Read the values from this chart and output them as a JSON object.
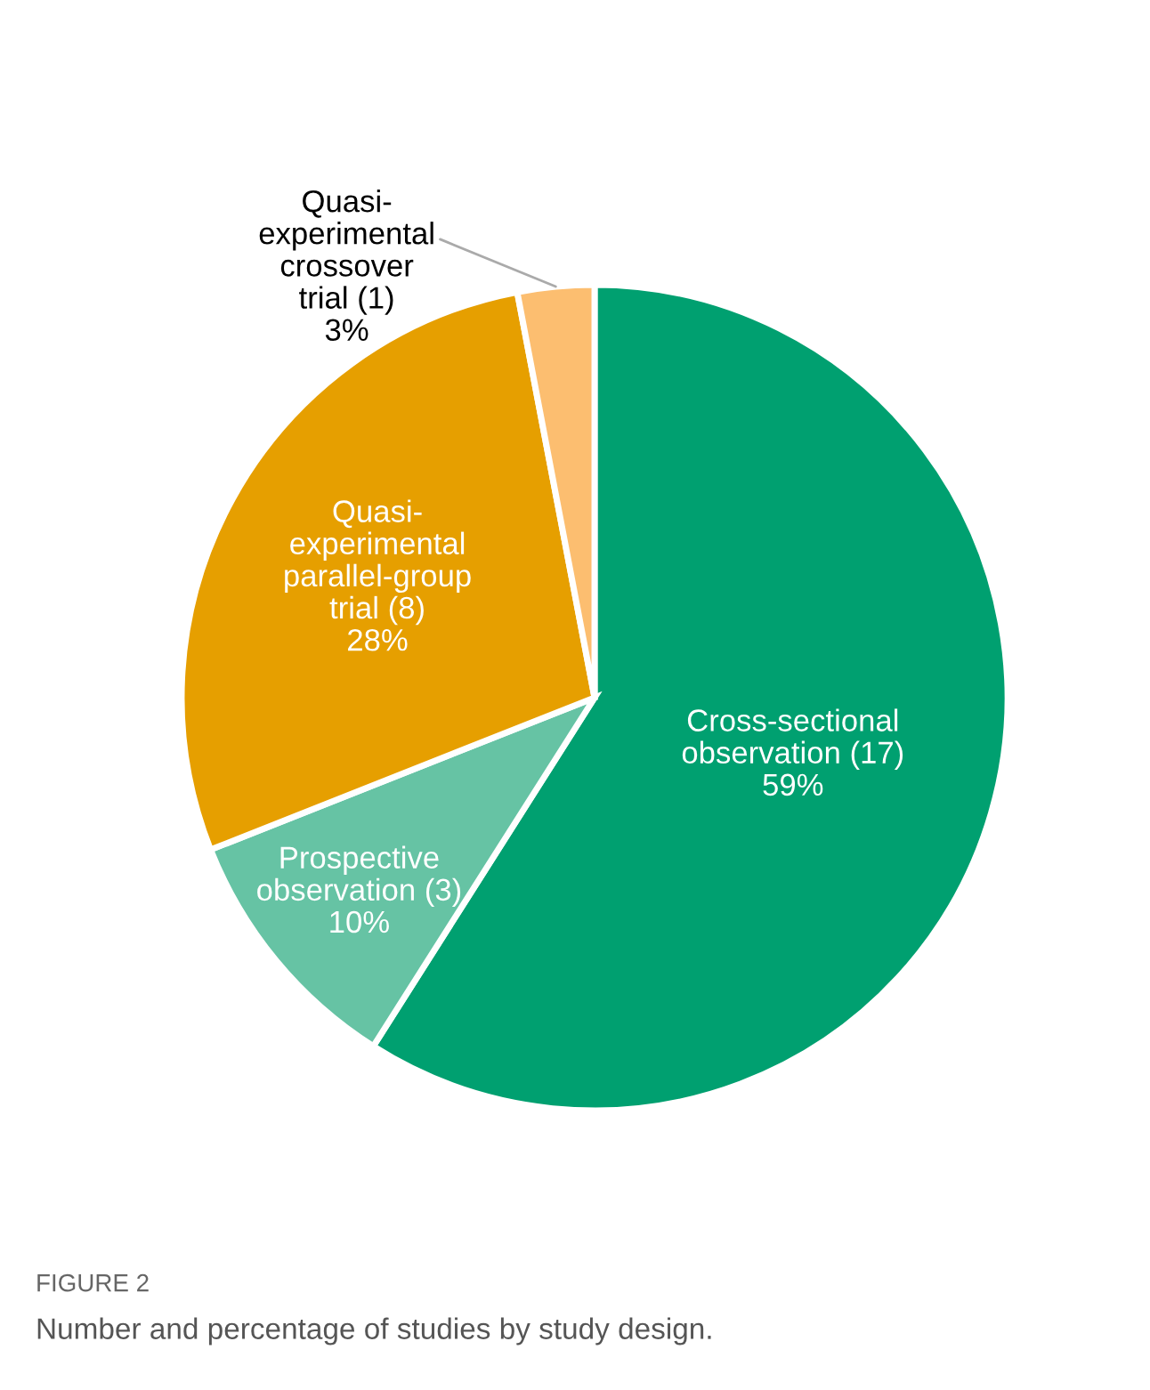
{
  "chart_data": {
    "type": "pie",
    "categories": [
      "Cross-sectional\nobservation (17)",
      "Prospective\nobservation (3)",
      "Quasi-\nexperimental\nparallel-group\ntrial (8)",
      "Quasi-\nexperimental\ncrossover\ntrial (1)"
    ],
    "values": [
      59,
      10,
      28,
      3
    ],
    "value_labels": [
      "59%",
      "10%",
      "28%",
      "3%"
    ],
    "colors": [
      "#00a070",
      "#66c3a4",
      "#e69f00",
      "#fcbe70"
    ],
    "annotations": [
      "FIGURE 2",
      "Number and percentage of studies by study design."
    ]
  }
}
